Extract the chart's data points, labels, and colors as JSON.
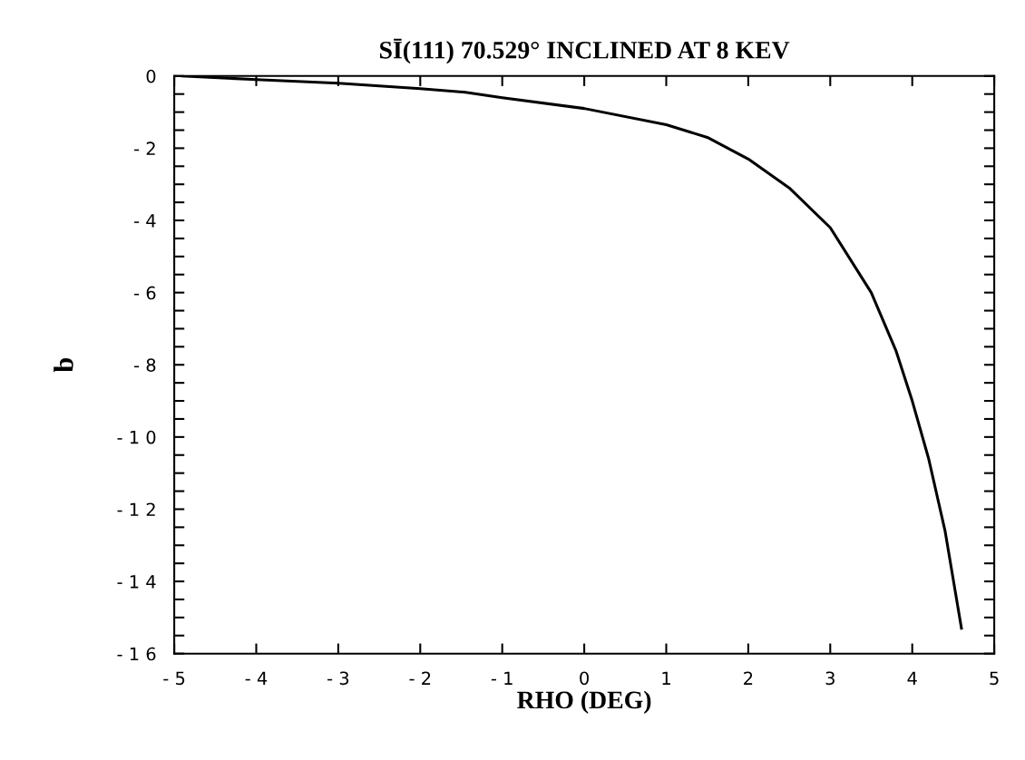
{
  "chart_data": {
    "type": "line",
    "title": "SĪ(111) 70.529° INCLINED AT 8 KEV",
    "xlabel": "RHO (DEG)",
    "ylabel": "b",
    "x": [
      -4.9,
      -4,
      -3,
      -2,
      -1.45,
      -1.3,
      -1,
      0,
      1,
      1.5,
      2,
      2.5,
      3,
      3.5,
      3.8,
      4,
      4.2,
      4.4,
      4.6
    ],
    "series": [
      {
        "color": "#000000",
        "values": [
          0,
          -0.1,
          -0.2,
          -0.35,
          -0.45,
          -0.5,
          -0.6,
          -0.9,
          -1.35,
          -1.7,
          -2.3,
          -3.1,
          -4.2,
          -6,
          -7.6,
          -9,
          -10.6,
          -12.6,
          -15.3
        ]
      }
    ],
    "xlim": [
      -5,
      5
    ],
    "ylim": [
      -16,
      0
    ],
    "xticks": [
      {
        "value": -5,
        "label": "- 5"
      },
      {
        "value": -4,
        "label": "- 4"
      },
      {
        "value": -3,
        "label": "- 3"
      },
      {
        "value": -2,
        "label": "- 2"
      },
      {
        "value": -1,
        "label": "- 1"
      },
      0,
      1,
      2,
      3,
      4,
      5
    ],
    "yticks": [
      0,
      {
        "value": -0.5,
        "label": null
      },
      {
        "value": -1,
        "label": null
      },
      {
        "value": -1.5,
        "label": null
      },
      {
        "value": -2,
        "label": "- 2"
      },
      {
        "value": -2.5,
        "label": null
      },
      {
        "value": -3,
        "label": null
      },
      {
        "value": -3.5,
        "label": null
      },
      {
        "value": -4,
        "label": "- 4"
      },
      {
        "value": -4.5,
        "label": null
      },
      {
        "value": -5,
        "label": null
      },
      {
        "value": -5.5,
        "label": null
      },
      {
        "value": -6,
        "label": "- 6"
      },
      {
        "value": -6.5,
        "label": null
      },
      {
        "value": -7,
        "label": null
      },
      {
        "value": -7.5,
        "label": null
      },
      {
        "value": -8,
        "label": "- 8"
      },
      {
        "value": -8.5,
        "label": null
      },
      {
        "value": -9,
        "label": null
      },
      {
        "value": -9.5,
        "label": null
      },
      {
        "value": -10,
        "label": "- 1 0"
      },
      {
        "value": -10.5,
        "label": null
      },
      {
        "value": -11,
        "label": null
      },
      {
        "value": -11.5,
        "label": null
      },
      {
        "value": -12,
        "label": "- 1 2"
      },
      {
        "value": -12.5,
        "label": null
      },
      {
        "value": -13,
        "label": null
      },
      {
        "value": -13.5,
        "label": null
      },
      {
        "value": -14,
        "label": "- 1 4"
      },
      {
        "value": -14.5,
        "label": null
      },
      {
        "value": -15,
        "label": null
      },
      {
        "value": -15.5,
        "label": null
      },
      {
        "value": -16,
        "label": "- 1 6"
      }
    ],
    "grid": false,
    "legend": false,
    "marker": "none",
    "line_style": "solid"
  }
}
